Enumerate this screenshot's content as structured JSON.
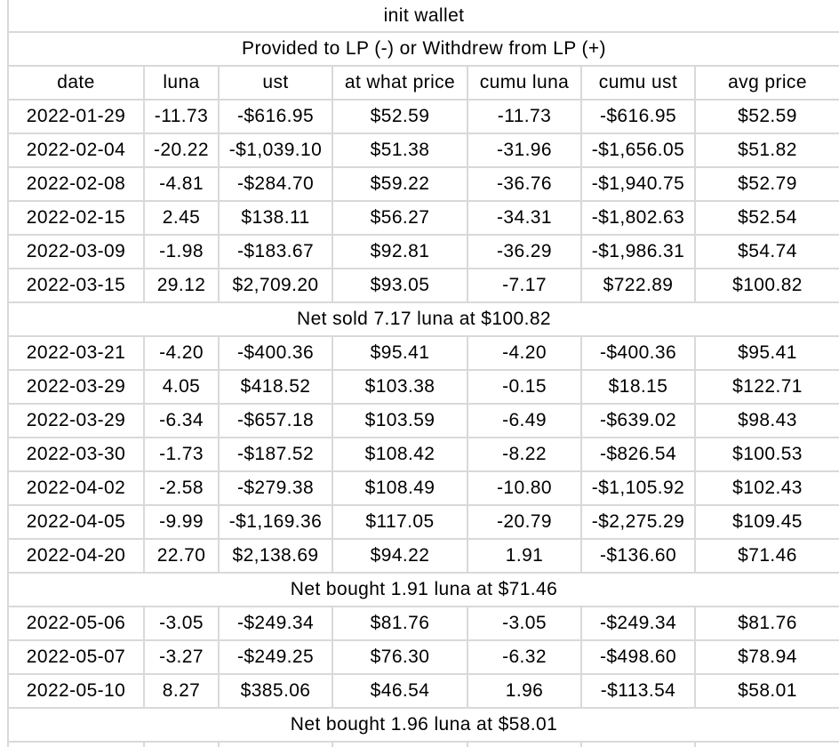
{
  "table": {
    "title": "init wallet",
    "subtitle": "Provided to LP (-) or Withdrew from LP (+)",
    "columns": [
      "date",
      "luna",
      "ust",
      "at what price",
      "cumu luna",
      "cumu ust",
      "avg price"
    ],
    "rows": [
      {
        "type": "data",
        "cells": [
          "2022-01-29",
          "-11.73",
          "-$616.95",
          "$52.59",
          "-11.73",
          "-$616.95",
          "$52.59"
        ]
      },
      {
        "type": "data",
        "cells": [
          "2022-02-04",
          "-20.22",
          "-$1,039.10",
          "$51.38",
          "-31.96",
          "-$1,656.05",
          "$51.82"
        ]
      },
      {
        "type": "data",
        "cells": [
          "2022-02-08",
          "-4.81",
          "-$284.70",
          "$59.22",
          "-36.76",
          "-$1,940.75",
          "$52.79"
        ]
      },
      {
        "type": "data",
        "cells": [
          "2022-02-15",
          "2.45",
          "$138.11",
          "$56.27",
          "-34.31",
          "-$1,802.63",
          "$52.54"
        ]
      },
      {
        "type": "data",
        "cells": [
          "2022-03-09",
          "-1.98",
          "-$183.67",
          "$92.81",
          "-36.29",
          "-$1,986.31",
          "$54.74"
        ]
      },
      {
        "type": "data",
        "cells": [
          "2022-03-15",
          "29.12",
          "$2,709.20",
          "$93.05",
          "-7.17",
          "$722.89",
          "$100.82"
        ]
      },
      {
        "type": "note",
        "text": "Net sold 7.17 luna at $100.82"
      },
      {
        "type": "data",
        "cells": [
          "2022-03-21",
          "-4.20",
          "-$400.36",
          "$95.41",
          "-4.20",
          "-$400.36",
          "$95.41"
        ]
      },
      {
        "type": "data",
        "cells": [
          "2022-03-29",
          "4.05",
          "$418.52",
          "$103.38",
          "-0.15",
          "$18.15",
          "$122.71"
        ]
      },
      {
        "type": "data",
        "cells": [
          "2022-03-29",
          "-6.34",
          "-$657.18",
          "$103.59",
          "-6.49",
          "-$639.02",
          "$98.43"
        ]
      },
      {
        "type": "data",
        "cells": [
          "2022-03-30",
          "-1.73",
          "-$187.52",
          "$108.42",
          "-8.22",
          "-$826.54",
          "$100.53"
        ]
      },
      {
        "type": "data",
        "cells": [
          "2022-04-02",
          "-2.58",
          "-$279.38",
          "$108.49",
          "-10.80",
          "-$1,105.92",
          "$102.43"
        ]
      },
      {
        "type": "data",
        "cells": [
          "2022-04-05",
          "-9.99",
          "-$1,169.36",
          "$117.05",
          "-20.79",
          "-$2,275.29",
          "$109.45"
        ]
      },
      {
        "type": "data",
        "cells": [
          "2022-04-20",
          "22.70",
          "$2,138.69",
          "$94.22",
          "1.91",
          "-$136.60",
          "$71.46"
        ]
      },
      {
        "type": "note",
        "text": "Net bought 1.91 luna at $71.46"
      },
      {
        "type": "data",
        "cells": [
          "2022-05-06",
          "-3.05",
          "-$249.34",
          "$81.76",
          "-3.05",
          "-$249.34",
          "$81.76"
        ]
      },
      {
        "type": "data",
        "cells": [
          "2022-05-07",
          "-3.27",
          "-$249.25",
          "$76.30",
          "-6.32",
          "-$498.60",
          "$78.94"
        ]
      },
      {
        "type": "data",
        "cells": [
          "2022-05-10",
          "8.27",
          "$385.06",
          "$46.54",
          "1.96",
          "-$113.54",
          "$58.01"
        ]
      },
      {
        "type": "note",
        "text": "Net bought 1.96 luna at $58.01"
      }
    ],
    "colors": {
      "gridline": "#d9d9d9",
      "background": "#ffffff",
      "text": "#000000"
    }
  }
}
